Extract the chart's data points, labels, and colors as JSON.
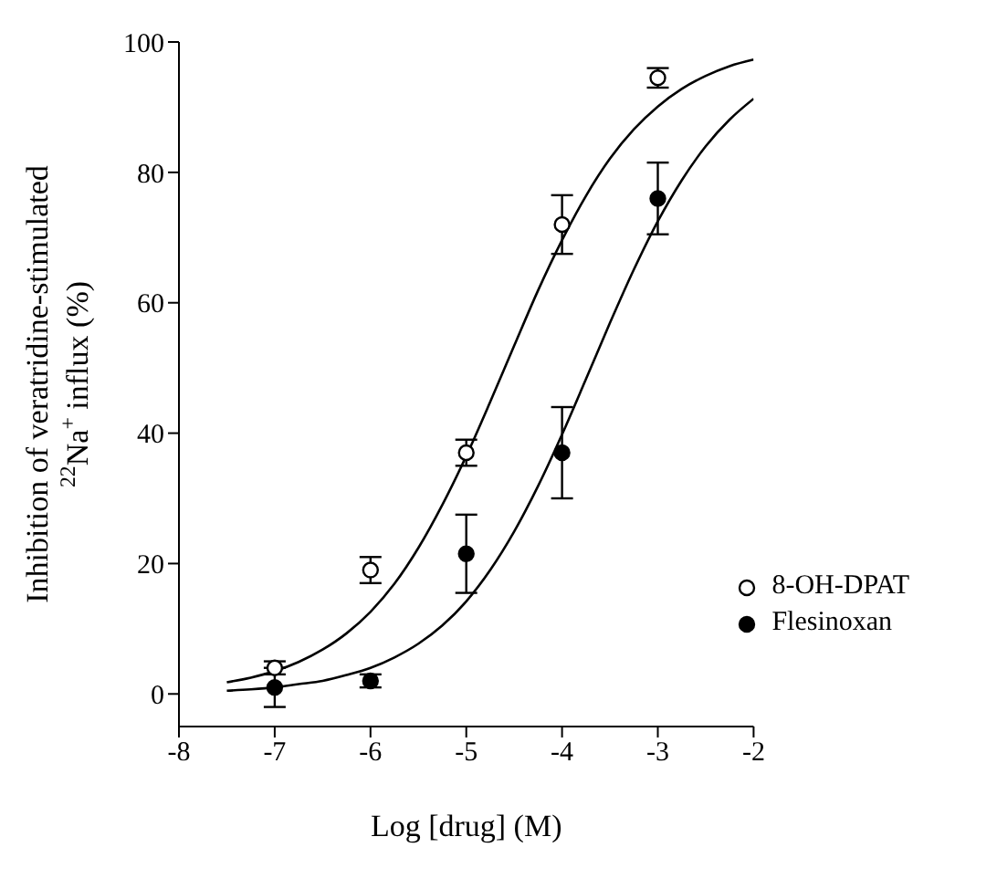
{
  "chart_data": {
    "type": "scatter",
    "xlabel": "Log [drug] (M)",
    "ylabel": "Inhibition of veratridine-stimulated\n$^{22}$Na$^{+}$ influx (%)",
    "xlim": [
      -8,
      -2
    ],
    "xticks": [
      -8,
      -7,
      -6,
      -5,
      -4,
      -3,
      -2
    ],
    "ylim": [
      -5,
      100
    ],
    "yticks": [
      0,
      20,
      40,
      60,
      80,
      100
    ],
    "grid": false,
    "legend": "bottom right",
    "marker": "circle",
    "series": [
      {
        "name": "8-OH-DPAT",
        "color": "#ffffff",
        "x": [
          -7,
          -6,
          -5,
          -4,
          -3
        ],
        "values": [
          4,
          19,
          37,
          72,
          94.5
        ],
        "errors": [
          1,
          2,
          2,
          4.5,
          1.5
        ]
      },
      {
        "name": "Flesinoxan",
        "color": "#000000",
        "x": [
          -7,
          -6,
          -5,
          -4,
          -3
        ],
        "values": [
          1,
          2,
          21.5,
          37,
          76
        ],
        "errors": [
          3,
          1,
          6,
          7,
          5.5
        ]
      },
      {
        "type": "line",
        "color": "#000000",
        "marker": "none",
        "x": [
          -7.5,
          -7.25,
          -7,
          -6.75,
          -6.5,
          -6.25,
          -6,
          -5.75,
          -5.5,
          -5.25,
          -5,
          -4.75,
          -4.5,
          -4.25,
          -4,
          -3.75,
          -3.5,
          -3.25,
          -3,
          -2.75,
          -2.5,
          -2.25,
          -2
        ],
        "values": [
          1.8,
          2.5,
          3.5,
          4.9,
          6.8,
          9.3,
          12.6,
          16.9,
          22.4,
          29.0,
          36.5,
          44.8,
          53.4,
          61.9,
          69.6,
          76.4,
          82.1,
          86.6,
          90.1,
          92.8,
          94.8,
          96.3,
          97.3
        ]
      },
      {
        "type": "line",
        "color": "#000000",
        "marker": "none",
        "x": [
          -7.5,
          -7.25,
          -7,
          -6.75,
          -6.5,
          -6.25,
          -6,
          -5.75,
          -5.5,
          -5.25,
          -5,
          -4.75,
          -4.5,
          -4.25,
          -4,
          -3.75,
          -3.5,
          -3.25,
          -3,
          -2.75,
          -2.5,
          -2.25,
          -2
        ],
        "values": [
          0.5,
          0.7,
          1.0,
          1.5,
          2.0,
          2.9,
          4.0,
          5.6,
          7.7,
          10.5,
          14.2,
          19.0,
          24.9,
          31.9,
          39.8,
          48.3,
          56.9,
          65.1,
          72.5,
          78.8,
          84.0,
          88.1,
          91.3
        ]
      }
    ]
  }
}
